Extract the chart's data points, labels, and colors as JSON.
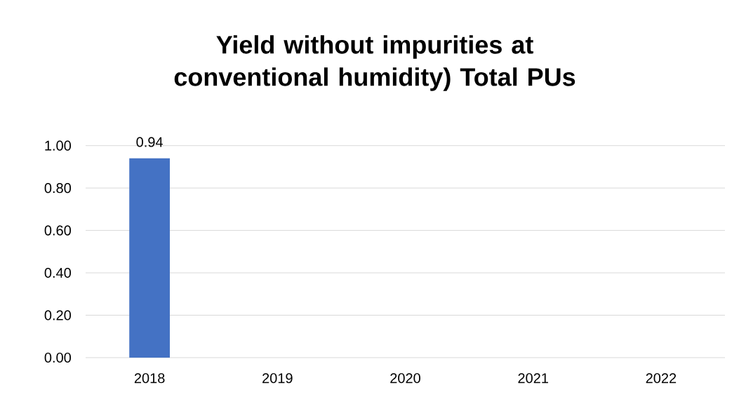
{
  "chart_data": {
    "type": "bar",
    "title": "Yield without impurities at conventional humidity) Total PUs",
    "categories": [
      "2018",
      "2019",
      "2020",
      "2021",
      "2022"
    ],
    "values": [
      0.94,
      null,
      null,
      null,
      null
    ],
    "value_labels": [
      "0.94",
      null,
      null,
      null,
      null
    ],
    "color": "#4472c4",
    "ylim": [
      0,
      1
    ],
    "yticks": [
      {
        "value": 0,
        "label": "0.00"
      },
      {
        "value": 0.2,
        "label": "0.20"
      },
      {
        "value": 0.4,
        "label": "0.40"
      },
      {
        "value": 0.6,
        "label": "0.60"
      },
      {
        "value": 0.8,
        "label": "0.80"
      },
      {
        "value": 1,
        "label": "1.00"
      }
    ],
    "grid": "y"
  }
}
